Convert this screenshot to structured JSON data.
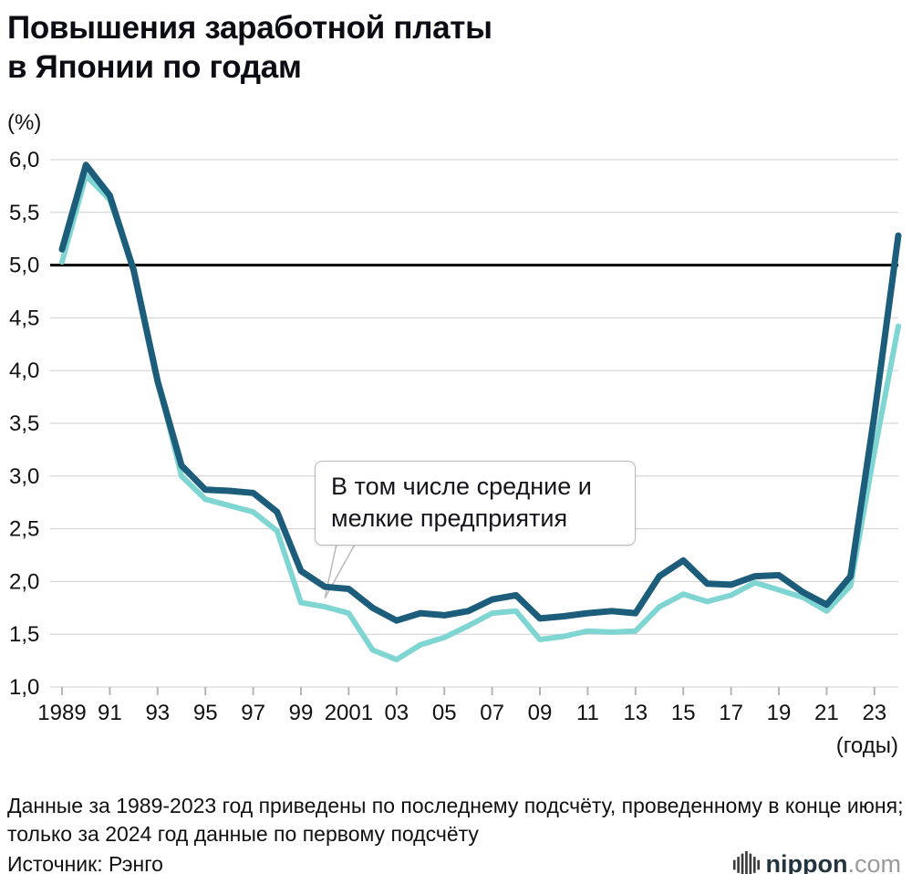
{
  "header": {
    "title": "Повышения заработной платы\nв Японии по годам"
  },
  "chart_data": {
    "type": "line",
    "title": "Повышения заработной платы в Японии по годам",
    "y_unit_label": "(%)",
    "x_unit_label": "(годы)",
    "ylim": [
      1.0,
      6.0
    ],
    "grid": true,
    "legend": "none",
    "reference_line": {
      "value": 5.0,
      "color": "#000000"
    },
    "y_ticks": [
      {
        "value": 1.0,
        "label": "1,0"
      },
      {
        "value": 1.5,
        "label": "1,5"
      },
      {
        "value": 2.0,
        "label": "2,0"
      },
      {
        "value": 2.5,
        "label": "2,5"
      },
      {
        "value": 3.0,
        "label": "3,0"
      },
      {
        "value": 3.5,
        "label": "3,5"
      },
      {
        "value": 4.0,
        "label": "4,0"
      },
      {
        "value": 4.5,
        "label": "4,5"
      },
      {
        "value": 5.0,
        "label": "5,0"
      },
      {
        "value": 5.5,
        "label": "5,5"
      },
      {
        "value": 6.0,
        "label": "6,0"
      }
    ],
    "x": [
      1989,
      1990,
      1991,
      1992,
      1993,
      1994,
      1995,
      1996,
      1997,
      1998,
      1999,
      2000,
      2001,
      2002,
      2003,
      2004,
      2005,
      2006,
      2007,
      2008,
      2009,
      2010,
      2011,
      2012,
      2013,
      2014,
      2015,
      2016,
      2017,
      2018,
      2019,
      2020,
      2021,
      2022,
      2023,
      2024
    ],
    "x_ticks": [
      {
        "year": 1989,
        "label": "1989"
      },
      {
        "year": 1991,
        "label": "91"
      },
      {
        "year": 1993,
        "label": "93"
      },
      {
        "year": 1995,
        "label": "95"
      },
      {
        "year": 1997,
        "label": "97"
      },
      {
        "year": 1999,
        "label": "99"
      },
      {
        "year": 2001,
        "label": "2001"
      },
      {
        "year": 2003,
        "label": "03"
      },
      {
        "year": 2005,
        "label": "05"
      },
      {
        "year": 2007,
        "label": "07"
      },
      {
        "year": 2009,
        "label": "09"
      },
      {
        "year": 2011,
        "label": "11"
      },
      {
        "year": 2013,
        "label": "13"
      },
      {
        "year": 2015,
        "label": "15"
      },
      {
        "year": 2017,
        "label": "17"
      },
      {
        "year": 2019,
        "label": "19"
      },
      {
        "year": 2021,
        "label": "21"
      },
      {
        "year": 2023,
        "label": "23"
      }
    ],
    "series": [
      {
        "id": "small-medium-enterprises",
        "color": "#7fd5d2",
        "line_width": 6,
        "values": [
          5.03,
          5.85,
          5.62,
          4.97,
          3.92,
          3.0,
          2.78,
          2.72,
          2.66,
          2.48,
          1.8,
          1.76,
          1.7,
          1.35,
          1.26,
          1.4,
          1.47,
          1.58,
          1.7,
          1.72,
          1.45,
          1.48,
          1.53,
          1.52,
          1.53,
          1.76,
          1.88,
          1.81,
          1.87,
          1.99,
          1.92,
          1.85,
          1.72,
          1.96,
          3.23,
          4.42
        ]
      },
      {
        "id": "all-companies",
        "color": "#1b5d7a",
        "line_width": 7,
        "values": [
          5.15,
          5.95,
          5.66,
          4.95,
          3.9,
          3.1,
          2.87,
          2.86,
          2.84,
          2.66,
          2.1,
          1.95,
          1.93,
          1.75,
          1.63,
          1.7,
          1.68,
          1.72,
          1.83,
          1.87,
          1.65,
          1.67,
          1.7,
          1.72,
          1.7,
          2.05,
          2.2,
          1.98,
          1.97,
          2.05,
          2.06,
          1.9,
          1.78,
          2.05,
          3.58,
          5.28
        ]
      }
    ],
    "annotation": {
      "text": "В том числе средние и мелкие предприятия",
      "refers_to_series": "small-medium-enterprises",
      "points_to_year": 2000,
      "points_to_value": 1.79
    }
  },
  "footer": {
    "note": "Данные за 1989-2023 год приведены по последнему подсчёту, проведенному в конце июня; только за 2024 год данные по первому подсчёту",
    "source": "Источник: Рэнго",
    "logo_text": "nippon",
    "logo_suffix": ".com"
  }
}
